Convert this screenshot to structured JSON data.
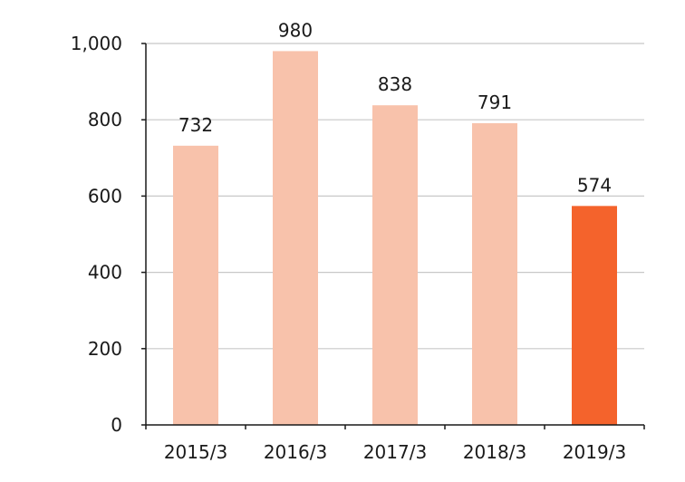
{
  "chart_data": {
    "type": "bar",
    "categories": [
      "2015/3",
      "2016/3",
      "2017/3",
      "2018/3",
      "2019/3"
    ],
    "values": [
      732,
      980,
      838,
      791,
      574
    ],
    "data_labels": [
      "732",
      "980",
      "838",
      "791",
      "574"
    ],
    "y_ticks": [
      {
        "value": 0,
        "label": "0"
      },
      {
        "value": 200,
        "label": "200"
      },
      {
        "value": 400,
        "label": "400"
      },
      {
        "value": 600,
        "label": "600"
      },
      {
        "value": 800,
        "label": "800"
      },
      {
        "value": 1000,
        "label": "1,000"
      }
    ],
    "ylim": [
      0,
      1000
    ],
    "grid": true,
    "title": "",
    "xlabel": "",
    "ylabel": "",
    "colors": {
      "bar": "#f8c2ab",
      "highlight_bar": "#f4632c",
      "grid": "#c8c8c8",
      "axis": "#1a1a1a"
    },
    "highlight_index": 4
  }
}
